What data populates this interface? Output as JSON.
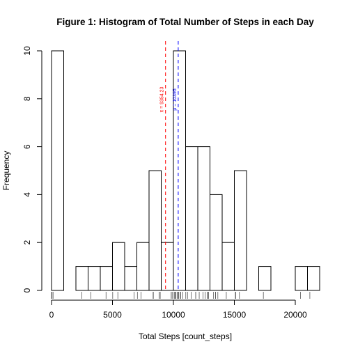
{
  "chart_data": {
    "type": "bar",
    "title": "Figure 1: Histogram of Total Number of Steps in each Day",
    "xlabel": "Total Steps [count_steps]",
    "ylabel": "Frequency",
    "xlim": [
      0,
      22000
    ],
    "ylim": [
      0,
      10
    ],
    "bin_width": 1000,
    "bins": [
      {
        "start": 0,
        "end": 1000,
        "count": 10
      },
      {
        "start": 1000,
        "end": 2000,
        "count": 0
      },
      {
        "start": 2000,
        "end": 3000,
        "count": 1
      },
      {
        "start": 3000,
        "end": 4000,
        "count": 1
      },
      {
        "start": 4000,
        "end": 5000,
        "count": 1
      },
      {
        "start": 5000,
        "end": 6000,
        "count": 2
      },
      {
        "start": 6000,
        "end": 7000,
        "count": 1
      },
      {
        "start": 7000,
        "end": 8000,
        "count": 2
      },
      {
        "start": 8000,
        "end": 9000,
        "count": 5
      },
      {
        "start": 9000,
        "end": 10000,
        "count": 2
      },
      {
        "start": 10000,
        "end": 11000,
        "count": 10
      },
      {
        "start": 11000,
        "end": 12000,
        "count": 6
      },
      {
        "start": 12000,
        "end": 13000,
        "count": 6
      },
      {
        "start": 13000,
        "end": 14000,
        "count": 4
      },
      {
        "start": 14000,
        "end": 15000,
        "count": 2
      },
      {
        "start": 15000,
        "end": 16000,
        "count": 5
      },
      {
        "start": 16000,
        "end": 17000,
        "count": 0
      },
      {
        "start": 17000,
        "end": 18000,
        "count": 1
      },
      {
        "start": 18000,
        "end": 19000,
        "count": 0
      },
      {
        "start": 19000,
        "end": 20000,
        "count": 0
      },
      {
        "start": 20000,
        "end": 21000,
        "count": 1
      },
      {
        "start": 21000,
        "end": 22000,
        "count": 1
      }
    ],
    "x_ticks": [
      0,
      5000,
      10000,
      15000,
      20000
    ],
    "x_tick_labels": [
      "0",
      "5000",
      "10000",
      "15000",
      "20000"
    ],
    "y_ticks": [
      0,
      2,
      4,
      6,
      8,
      10
    ],
    "y_tick_labels": [
      "0",
      "2",
      "4",
      "6",
      "8",
      "10"
    ],
    "rug": [
      0,
      41,
      126,
      2492,
      3219,
      4472,
      5018,
      5441,
      6778,
      7047,
      7336,
      8334,
      8355,
      8821,
      8918,
      9819,
      9900,
      10056,
      10119,
      10139,
      10183,
      10304,
      10395,
      10439,
      10571,
      10600,
      10765,
      11015,
      11162,
      11458,
      11834,
      11829,
      12116,
      12426,
      12608,
      12787,
      12811,
      12883,
      13294,
      13452,
      13460,
      13646,
      14339,
      15084,
      15098,
      15110,
      15414,
      17382,
      20427,
      21194
    ],
    "reference_lines": [
      {
        "name": "mean",
        "value": 9354.23,
        "label": "x̄ = 9354.23",
        "color": "#ff0000"
      },
      {
        "name": "median",
        "value": 10395,
        "label": "μ = 10395",
        "color": "#0000ff"
      }
    ],
    "grid": false,
    "legend": "none"
  }
}
